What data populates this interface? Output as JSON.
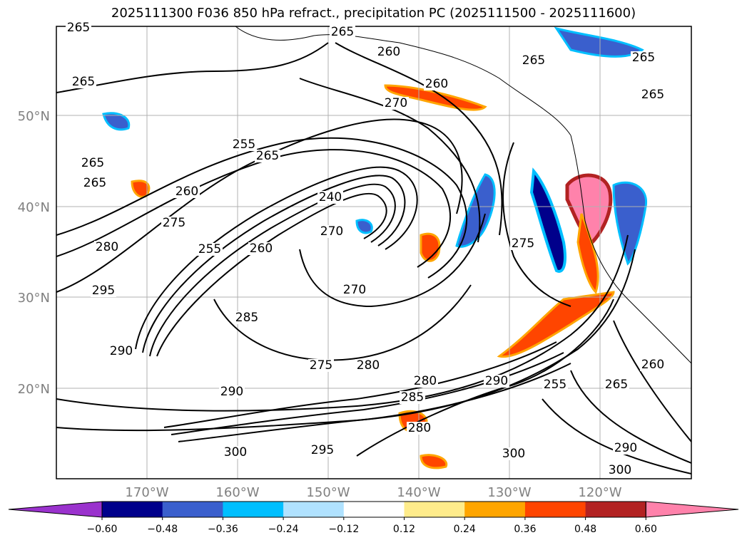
{
  "title": "2025111300 F036 850 hPa refract., precipitation PC (2025111500 - 2025111600)",
  "lat_labels": [
    "50°N",
    "40°N",
    "30°N",
    "20°N"
  ],
  "lon_labels": [
    "170°W",
    "160°W",
    "150°W",
    "140°W",
    "130°W",
    "120°W"
  ],
  "colorbar": {
    "ticks": [
      "−0.60",
      "−0.48",
      "−0.36",
      "−0.24",
      "−0.12",
      "0.12",
      "0.24",
      "0.36",
      "0.48",
      "0.60"
    ],
    "colors": [
      "#9a32cd",
      "#00008b",
      "#3a5fcd",
      "#00bfff",
      "#b0e2ff",
      "#ffffff",
      "#ffec8b",
      "#ffa500",
      "#ff4500",
      "#b22222",
      "#ff82ab"
    ]
  },
  "contour_labels": [
    "265",
    "265",
    "260",
    "260",
    "265",
    "265",
    "265",
    "270",
    "255",
    "265",
    "260",
    "275",
    "240",
    "270",
    "260",
    "255",
    "265",
    "285",
    "270",
    "280",
    "290",
    "295",
    "290",
    "275",
    "280",
    "290",
    "285",
    "280",
    "300",
    "295",
    "300",
    "300",
    "290",
    "265",
    "260",
    "255",
    "275",
    "265",
    "265",
    "280"
  ],
  "colors": {
    "land_outline": "#000000",
    "grid": "#b0b0b0",
    "contour": "#000000"
  }
}
